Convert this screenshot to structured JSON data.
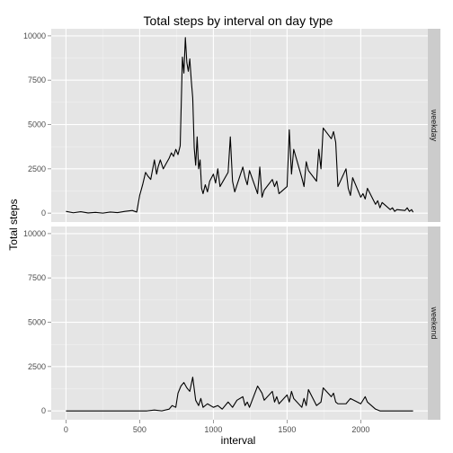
{
  "chart_data": {
    "type": "line",
    "title": "Total steps by interval on day type",
    "xlabel": "interval",
    "ylabel": "Total steps",
    "xlim": [
      -100,
      2455
    ],
    "ylim": [
      -500,
      10400
    ],
    "x_ticks": [
      0,
      500,
      1000,
      1500,
      2000
    ],
    "y_ticks": [
      0,
      2500,
      5000,
      7500,
      10000
    ],
    "y_tick_labels": [
      "0",
      "2500",
      "5000",
      "7500",
      "10000"
    ],
    "x_tick_labels": [
      "0",
      "500",
      "1000",
      "1500",
      "2000"
    ],
    "grid": true,
    "facets": [
      {
        "label": "weekday",
        "series": [
          {
            "x": [
              0,
              50,
              100,
              150,
              200,
              250,
              300,
              350,
              400,
              450,
              480,
              500,
              520,
              540,
              555,
              575,
              600,
              615,
              625,
              640,
              660,
              680,
              700,
              715,
              730,
              745,
              760,
              775,
              790,
              800,
              810,
              820,
              830,
              840,
              850,
              860,
              870,
              880,
              890,
              900,
              910,
              920,
              930,
              945,
              960,
              975,
              1000,
              1015,
              1030,
              1045,
              1100,
              1115,
              1130,
              1145,
              1200,
              1215,
              1230,
              1245,
              1300,
              1315,
              1330,
              1345,
              1400,
              1415,
              1430,
              1445,
              1500,
              1515,
              1530,
              1545,
              1600,
              1615,
              1630,
              1645,
              1700,
              1715,
              1730,
              1745,
              1800,
              1815,
              1830,
              1845,
              1900,
              1915,
              1930,
              1945,
              2000,
              2015,
              2030,
              2045,
              2100,
              2115,
              2130,
              2145,
              2200,
              2215,
              2230,
              2245,
              2300,
              2315,
              2330,
              2345,
              2355
            ],
            "y": [
              100,
              20,
              80,
              10,
              40,
              0,
              60,
              30,
              100,
              150,
              60,
              1000,
              1600,
              2300,
              2100,
              1900,
              3000,
              2200,
              2600,
              3000,
              2500,
              2800,
              3100,
              3400,
              3200,
              3600,
              3300,
              3800,
              8800,
              7900,
              9900,
              8500,
              8000,
              8700,
              7500,
              6500,
              3700,
              2700,
              4300,
              2500,
              3000,
              1400,
              1100,
              1600,
              1200,
              1800,
              2200,
              1700,
              2500,
              1500,
              2300,
              4300,
              1800,
              1200,
              2600,
              2000,
              1600,
              2400,
              1100,
              2600,
              900,
              1300,
              1900,
              1500,
              1800,
              1100,
              1500,
              4700,
              2200,
              3600,
              2000,
              1500,
              2900,
              2400,
              1800,
              3600,
              2500,
              4800,
              4200,
              4600,
              4000,
              1500,
              2500,
              1400,
              1000,
              2000,
              900,
              1100,
              800,
              1400,
              500,
              700,
              300,
              600,
              200,
              300,
              100,
              200,
              150,
              300,
              100,
              200,
              50
            ]
          }
        ]
      },
      {
        "label": "weekend",
        "series": [
          {
            "x": [
              0,
              100,
              200,
              300,
              400,
              500,
              550,
              600,
              650,
              700,
              720,
              745,
              760,
              780,
              800,
              820,
              840,
              860,
              880,
              900,
              915,
              930,
              960,
              1000,
              1030,
              1060,
              1100,
              1130,
              1160,
              1200,
              1215,
              1230,
              1245,
              1300,
              1315,
              1330,
              1345,
              1400,
              1415,
              1430,
              1445,
              1500,
              1515,
              1530,
              1545,
              1600,
              1615,
              1630,
              1645,
              1700,
              1730,
              1745,
              1800,
              1815,
              1830,
              1845,
              1900,
              1930,
              2000,
              2030,
              2045,
              2100,
              2130,
              2200,
              2300,
              2355
            ],
            "y": [
              0,
              0,
              0,
              0,
              0,
              0,
              0,
              50,
              0,
              100,
              300,
              200,
              1000,
              1400,
              1600,
              1300,
              1100,
              1900,
              600,
              300,
              700,
              200,
              400,
              200,
              300,
              100,
              500,
              200,
              600,
              800,
              300,
              500,
              200,
              1400,
              1200,
              1000,
              600,
              1100,
              500,
              800,
              400,
              900,
              500,
              1100,
              700,
              200,
              700,
              300,
              1200,
              300,
              500,
              1300,
              800,
              1000,
              500,
              400,
              400,
              700,
              400,
              800,
              500,
              100,
              0,
              0,
              0,
              0
            ]
          }
        ]
      }
    ]
  }
}
